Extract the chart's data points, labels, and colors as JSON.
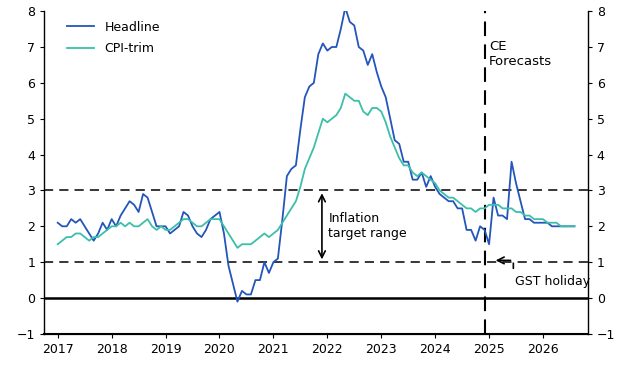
{
  "title": "",
  "ylim": [
    -1,
    8
  ],
  "yticks": [
    -1,
    0,
    1,
    2,
    3,
    4,
    5,
    6,
    7,
    8
  ],
  "target_low": 1,
  "target_high": 3,
  "forecast_date": 2024.917,
  "headline_color": "#2355bb",
  "cpi_trim_color": "#3bbfaa",
  "legend_headline": "Headline",
  "legend_cpi": "CPI-trim",
  "annotation_inflation": "Inflation\ntarget range",
  "annotation_gst": "GST holiday",
  "annotation_ce": "CE\nForecasts",
  "headline_dates": [
    2017.0,
    2017.083,
    2017.167,
    2017.25,
    2017.333,
    2017.417,
    2017.5,
    2017.583,
    2017.667,
    2017.75,
    2017.833,
    2017.917,
    2018.0,
    2018.083,
    2018.167,
    2018.25,
    2018.333,
    2018.417,
    2018.5,
    2018.583,
    2018.667,
    2018.75,
    2018.833,
    2018.917,
    2019.0,
    2019.083,
    2019.167,
    2019.25,
    2019.333,
    2019.417,
    2019.5,
    2019.583,
    2019.667,
    2019.75,
    2019.833,
    2019.917,
    2020.0,
    2020.083,
    2020.167,
    2020.25,
    2020.333,
    2020.417,
    2020.5,
    2020.583,
    2020.667,
    2020.75,
    2020.833,
    2020.917,
    2021.0,
    2021.083,
    2021.167,
    2021.25,
    2021.333,
    2021.417,
    2021.5,
    2021.583,
    2021.667,
    2021.75,
    2021.833,
    2021.917,
    2022.0,
    2022.083,
    2022.167,
    2022.25,
    2022.333,
    2022.417,
    2022.5,
    2022.583,
    2022.667,
    2022.75,
    2022.833,
    2022.917,
    2023.0,
    2023.083,
    2023.167,
    2023.25,
    2023.333,
    2023.417,
    2023.5,
    2023.583,
    2023.667,
    2023.75,
    2023.833,
    2023.917,
    2024.0,
    2024.083,
    2024.167,
    2024.25,
    2024.333,
    2024.417,
    2024.5,
    2024.583,
    2024.667,
    2024.75,
    2024.833,
    2024.917,
    2025.0,
    2025.083,
    2025.167,
    2025.25,
    2025.333,
    2025.417,
    2025.5,
    2025.583,
    2025.667,
    2025.75,
    2025.833,
    2025.917,
    2026.0,
    2026.083,
    2026.167,
    2026.25,
    2026.333,
    2026.417,
    2026.5,
    2026.583
  ],
  "headline_values": [
    2.1,
    2.0,
    2.0,
    2.2,
    2.1,
    2.2,
    2.0,
    1.8,
    1.6,
    1.8,
    2.1,
    1.9,
    2.2,
    2.0,
    2.3,
    2.5,
    2.7,
    2.6,
    2.4,
    2.9,
    2.8,
    2.4,
    2.0,
    2.0,
    2.0,
    1.8,
    1.9,
    2.0,
    2.4,
    2.3,
    2.0,
    1.8,
    1.7,
    1.9,
    2.2,
    2.3,
    2.4,
    1.8,
    0.9,
    0.4,
    -0.1,
    0.2,
    0.1,
    0.1,
    0.5,
    0.5,
    1.0,
    0.7,
    1.0,
    1.1,
    2.2,
    3.4,
    3.6,
    3.7,
    4.7,
    5.6,
    5.9,
    6.0,
    6.8,
    7.1,
    6.9,
    7.0,
    7.0,
    7.5,
    8.1,
    7.7,
    7.6,
    7.0,
    6.9,
    6.5,
    6.8,
    6.3,
    5.9,
    5.6,
    5.0,
    4.4,
    4.3,
    3.8,
    3.8,
    3.3,
    3.3,
    3.5,
    3.1,
    3.4,
    3.1,
    2.9,
    2.8,
    2.7,
    2.7,
    2.5,
    2.5,
    1.9,
    1.9,
    1.6,
    2.0,
    1.9,
    1.5,
    2.8,
    2.3,
    2.3,
    2.2,
    3.8,
    3.2,
    2.7,
    2.2,
    2.2,
    2.1,
    2.1,
    2.1,
    2.1,
    2.0,
    2.0,
    2.0,
    2.0,
    2.0,
    2.0
  ],
  "cpi_trim_dates": [
    2017.0,
    2017.083,
    2017.167,
    2017.25,
    2017.333,
    2017.417,
    2017.5,
    2017.583,
    2017.667,
    2017.75,
    2017.833,
    2017.917,
    2018.0,
    2018.083,
    2018.167,
    2018.25,
    2018.333,
    2018.417,
    2018.5,
    2018.583,
    2018.667,
    2018.75,
    2018.833,
    2018.917,
    2019.0,
    2019.083,
    2019.167,
    2019.25,
    2019.333,
    2019.417,
    2019.5,
    2019.583,
    2019.667,
    2019.75,
    2019.833,
    2019.917,
    2020.0,
    2020.083,
    2020.167,
    2020.25,
    2020.333,
    2020.417,
    2020.5,
    2020.583,
    2020.667,
    2020.75,
    2020.833,
    2020.917,
    2021.0,
    2021.083,
    2021.167,
    2021.25,
    2021.333,
    2021.417,
    2021.5,
    2021.583,
    2021.667,
    2021.75,
    2021.833,
    2021.917,
    2022.0,
    2022.083,
    2022.167,
    2022.25,
    2022.333,
    2022.417,
    2022.5,
    2022.583,
    2022.667,
    2022.75,
    2022.833,
    2022.917,
    2023.0,
    2023.083,
    2023.167,
    2023.25,
    2023.333,
    2023.417,
    2023.5,
    2023.583,
    2023.667,
    2023.75,
    2023.833,
    2023.917,
    2024.0,
    2024.083,
    2024.167,
    2024.25,
    2024.333,
    2024.417,
    2024.5,
    2024.583,
    2024.667,
    2024.75,
    2024.833,
    2024.917,
    2025.0,
    2025.083,
    2025.167,
    2025.25,
    2025.333,
    2025.417,
    2025.5,
    2025.583,
    2025.667,
    2025.75,
    2025.833,
    2025.917,
    2026.0,
    2026.083,
    2026.167,
    2026.25,
    2026.333,
    2026.417,
    2026.5,
    2026.583
  ],
  "cpi_trim_values": [
    1.5,
    1.6,
    1.7,
    1.7,
    1.8,
    1.8,
    1.7,
    1.6,
    1.7,
    1.7,
    1.8,
    1.9,
    2.0,
    2.0,
    2.1,
    2.0,
    2.1,
    2.0,
    2.0,
    2.1,
    2.2,
    2.0,
    1.9,
    2.0,
    1.9,
    1.9,
    2.0,
    2.1,
    2.2,
    2.2,
    2.1,
    2.0,
    2.0,
    2.1,
    2.2,
    2.2,
    2.2,
    2.0,
    1.8,
    1.6,
    1.4,
    1.5,
    1.5,
    1.5,
    1.6,
    1.7,
    1.8,
    1.7,
    1.8,
    1.9,
    2.1,
    2.3,
    2.5,
    2.7,
    3.1,
    3.6,
    3.9,
    4.2,
    4.6,
    5.0,
    4.9,
    5.0,
    5.1,
    5.3,
    5.7,
    5.6,
    5.5,
    5.5,
    5.2,
    5.1,
    5.3,
    5.3,
    5.2,
    4.9,
    4.5,
    4.2,
    3.9,
    3.7,
    3.7,
    3.5,
    3.4,
    3.5,
    3.4,
    3.3,
    3.2,
    3.0,
    2.9,
    2.8,
    2.8,
    2.7,
    2.6,
    2.5,
    2.5,
    2.4,
    2.5,
    2.5,
    2.6,
    2.6,
    2.6,
    2.5,
    2.5,
    2.5,
    2.4,
    2.4,
    2.3,
    2.3,
    2.2,
    2.2,
    2.2,
    2.1,
    2.1,
    2.1,
    2.0,
    2.0,
    2.0,
    2.0
  ],
  "xticks": [
    2017,
    2018,
    2019,
    2020,
    2021,
    2022,
    2023,
    2024,
    2025,
    2026
  ],
  "xlim": [
    2016.75,
    2026.83
  ]
}
